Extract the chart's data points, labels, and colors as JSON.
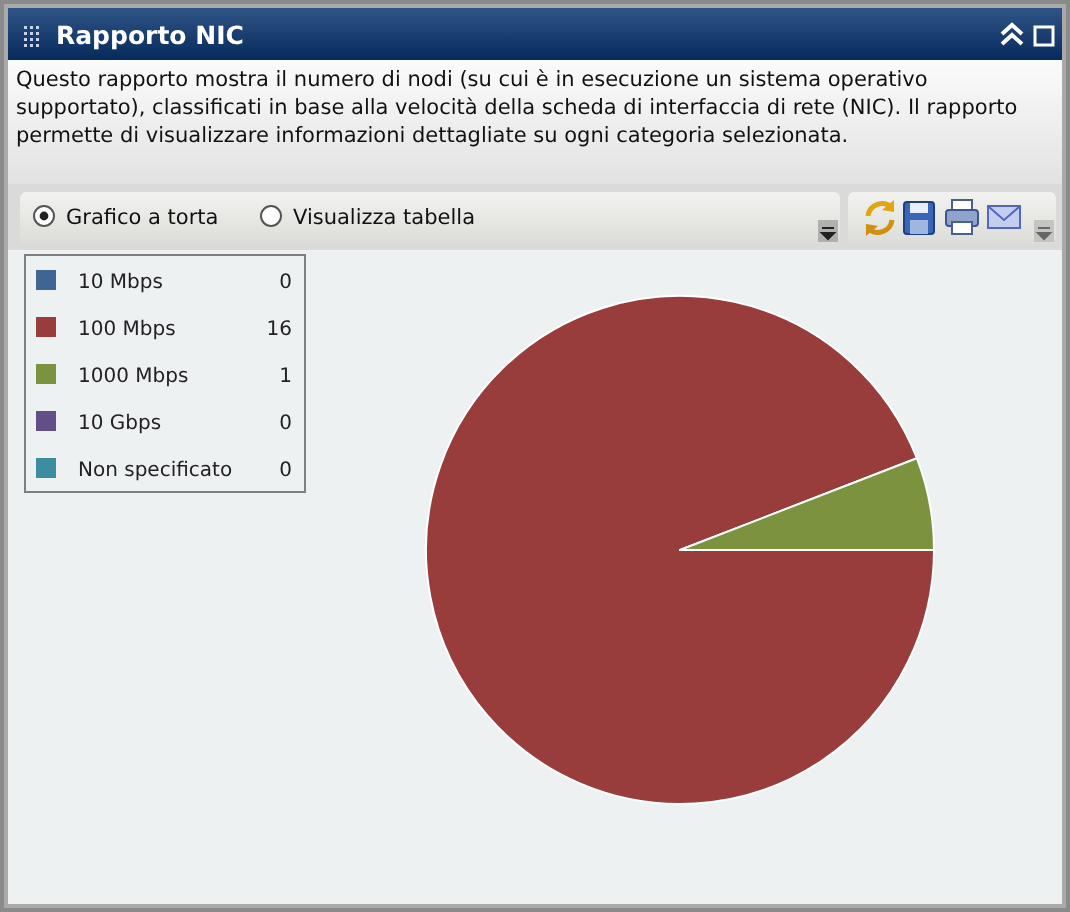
{
  "chart_data": {
    "type": "pie",
    "title": "Rapporto NIC",
    "subtitle": "Questo rapporto mostra il numero di nodi (su cui è in esecuzione un sistema operativo supportato), classificati in base alla velocità della scheda di interfaccia di rete (NIC). Il rapporto permette di visualizzare informazioni dettagliate su ogni categoria selezionata.",
    "annotations": [
      "Grafico a torta",
      "Visualizza tabella"
    ],
    "categories": [
      "10 Mbps",
      "100 Mbps",
      "1000 Mbps",
      "10 Gbps",
      "Non specificato"
    ],
    "values": [
      0,
      16,
      1,
      0,
      0
    ],
    "value_labels": [
      "0",
      "16",
      "1",
      "0",
      "0"
    ],
    "colors": [
      "#3f6594",
      "#983c3c",
      "#7b923f",
      "#634f88",
      "#3c8da0"
    ],
    "legend": "top left"
  }
}
